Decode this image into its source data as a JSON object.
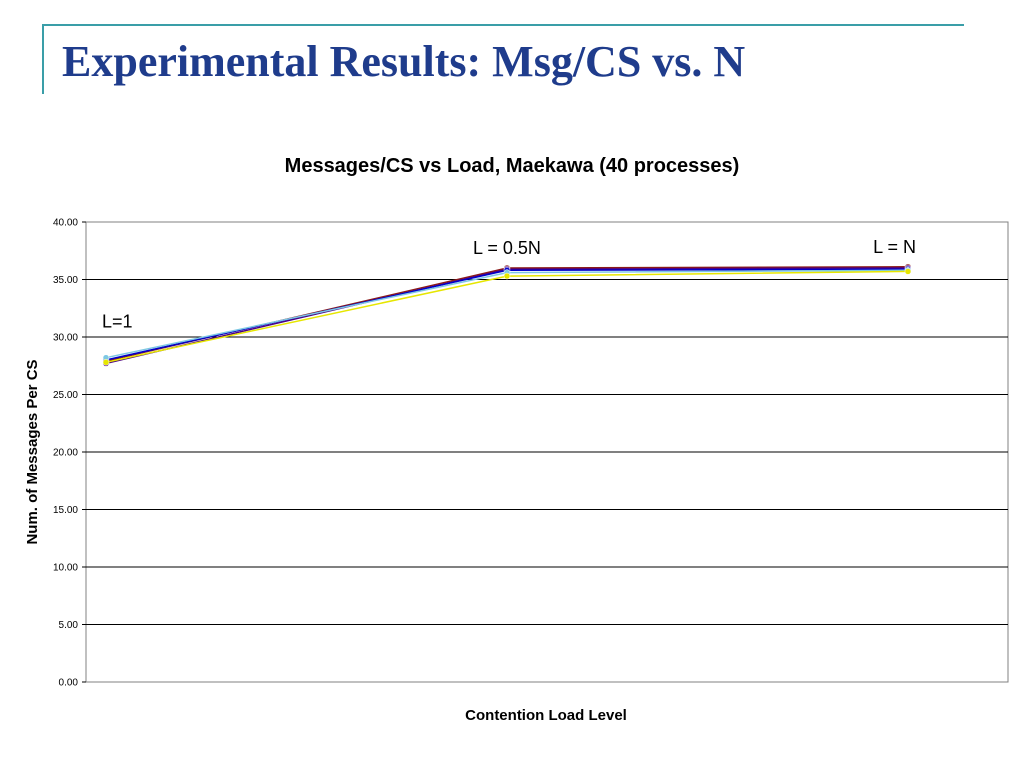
{
  "slide": {
    "title": "Experimental Results: Msg/CS vs. N",
    "accent_color": "#3a9ea8",
    "title_color": "#1f3c8c"
  },
  "chart_data": {
    "type": "line",
    "title": "Messages/CS vs Load, Maekawa (40 processes)",
    "xlabel": "Contention Load Level",
    "ylabel": "Num. of Messages Per CS",
    "ylim": [
      0,
      40
    ],
    "yticks": [
      "0.00",
      "5.00",
      "10.00",
      "15.00",
      "20.00",
      "25.00",
      "30.00",
      "35.00",
      "40.00"
    ],
    "grid": true,
    "legend": "none",
    "categories": [
      "L=1",
      "L = 0.5N",
      "L = N"
    ],
    "annotations": [
      "L=1",
      "L = 0.5N",
      "L = N"
    ],
    "series": [
      {
        "color": "#8b1a1a",
        "values": [
          27.9,
          36.0,
          36.1
        ]
      },
      {
        "color": "#4b0082",
        "values": [
          27.7,
          35.9,
          36.0
        ]
      },
      {
        "color": "#0000cc",
        "values": [
          28.0,
          35.8,
          35.9
        ]
      },
      {
        "color": "#7ec8e3",
        "values": [
          28.2,
          35.6,
          35.8
        ]
      },
      {
        "color": "#e6e600",
        "values": [
          27.8,
          35.3,
          35.7
        ]
      }
    ]
  }
}
